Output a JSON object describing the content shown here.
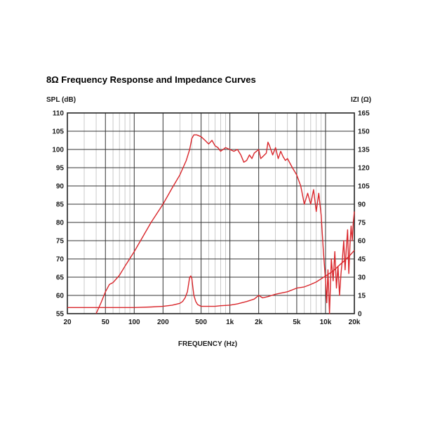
{
  "chart_data": {
    "type": "line",
    "title": "8Ω Frequency Response and Impedance Curves",
    "xlabel": "FREQUENCY (Hz)",
    "ylabel_left": "SPL (dB)",
    "ylabel_right": "IZI (Ω)",
    "x_scale": "log",
    "xlim": [
      20,
      20000
    ],
    "ylim_left": [
      55,
      110
    ],
    "ylim_right": [
      0,
      165
    ],
    "x_ticks": [
      20,
      50,
      100,
      200,
      500,
      1000,
      2000,
      5000,
      10000,
      20000
    ],
    "x_tick_labels": [
      "20",
      "50",
      "100",
      "200",
      "500",
      "1k",
      "2k",
      "5k",
      "10k",
      "20k"
    ],
    "y_left_ticks": [
      55,
      60,
      65,
      70,
      75,
      80,
      85,
      90,
      95,
      100,
      105,
      110
    ],
    "y_left_tick_labels": [
      "55",
      "60",
      "65",
      "70",
      "75",
      "80",
      "85",
      "90",
      "95",
      "100",
      "105",
      "110"
    ],
    "y_right_ticks": [
      0,
      15,
      30,
      45,
      60,
      75,
      90,
      105,
      120,
      135,
      150,
      165
    ],
    "y_right_tick_labels": [
      "0",
      "15",
      "30",
      "45",
      "60",
      "75",
      "90",
      "105",
      "120",
      "135",
      "150",
      "165"
    ],
    "grid": true,
    "line_color": "#d9262b",
    "series": [
      {
        "axis": "left",
        "x": [
          40,
          45,
          50,
          55,
          60,
          70,
          80,
          100,
          150,
          200,
          250,
          300,
          350,
          380,
          400,
          420,
          450,
          500,
          550,
          600,
          650,
          700,
          750,
          800,
          900,
          1000,
          1100,
          1200,
          1300,
          1400,
          1500,
          1600,
          1700,
          1800,
          1900,
          2000,
          2100,
          2200,
          2400,
          2500,
          2600,
          2800,
          3000,
          3200,
          3400,
          3600,
          3800,
          4000,
          4500,
          5000,
          5500,
          6000,
          6500,
          7000,
          7500,
          8000,
          8500,
          9000,
          9500,
          10000,
          10300,
          10600,
          11000,
          11500,
          12000,
          12500,
          13000,
          13500,
          14000,
          14500,
          15000,
          15500,
          16000,
          16500,
          17000,
          17500,
          18000,
          18500,
          19000,
          19500,
          20000
        ],
        "values": [
          55,
          58,
          61,
          63,
          63.5,
          65.5,
          68,
          72,
          80,
          85,
          89.5,
          93,
          97,
          100,
          103,
          104,
          104,
          103.5,
          102.5,
          101.5,
          102.5,
          101,
          100.5,
          99.5,
          100.5,
          100,
          99.5,
          100,
          98.5,
          96.5,
          97,
          98.5,
          97.5,
          99,
          99.5,
          100,
          97.5,
          98,
          99,
          102,
          101,
          98.5,
          100.5,
          97.5,
          99.5,
          98,
          97,
          97.5,
          95,
          93,
          90,
          85,
          88,
          85,
          89,
          83,
          88,
          82,
          72,
          64,
          58,
          67,
          55,
          70,
          64,
          72,
          62,
          68,
          60,
          66,
          70,
          75,
          67,
          73,
          78,
          66,
          74,
          79,
          75,
          80,
          83
        ]
      },
      {
        "axis": "right",
        "x": [
          20,
          50,
          100,
          150,
          200,
          250,
          300,
          320,
          340,
          360,
          380,
          390,
          400,
          410,
          420,
          440,
          460,
          500,
          600,
          700,
          800,
          1000,
          1200,
          1500,
          1800,
          2000,
          2200,
          2500,
          3000,
          4000,
          5000,
          6000,
          7000,
          8000,
          10000,
          12000,
          14000,
          16000,
          18000,
          20000
        ],
        "values": [
          5,
          5,
          5,
          5.5,
          6,
          7,
          8.5,
          10,
          13,
          18,
          30,
          31,
          29,
          22,
          15,
          10,
          7.5,
          6,
          6,
          6,
          6.5,
          7,
          8,
          10,
          12,
          15,
          13,
          14,
          16,
          18,
          21,
          22,
          24,
          26,
          31,
          35,
          40,
          44,
          48,
          52
        ]
      }
    ]
  }
}
